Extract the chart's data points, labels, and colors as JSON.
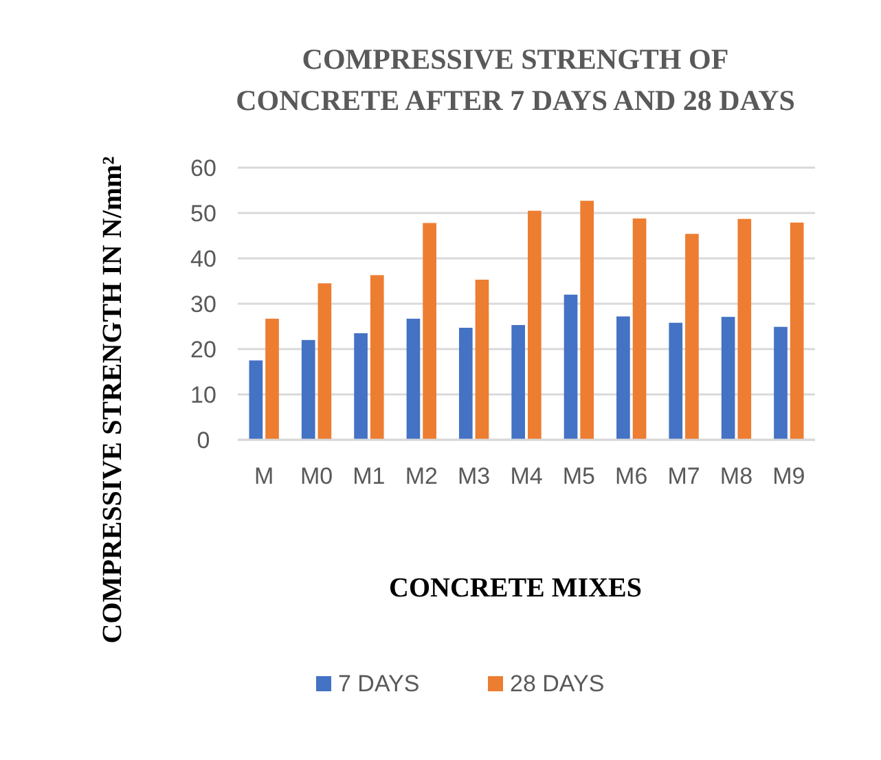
{
  "chart_data": {
    "type": "bar",
    "title": "COMPRESSIVE STRENGTH OF\nCONCRETE AFTER 7 DAYS AND 28 DAYS",
    "xlabel": "CONCRETE MIXES",
    "ylabel": "COMPRESSIVE STRENGTH IN N/mm²",
    "categories": [
      "M",
      "M0",
      "M1",
      "M2",
      "M3",
      "M4",
      "M5",
      "M6",
      "M7",
      "M8",
      "M9"
    ],
    "series": [
      {
        "name": "7 DAYS",
        "color": "#4472c4",
        "values": [
          17.5,
          22,
          23.5,
          26.7,
          24.7,
          25.3,
          32,
          27.2,
          25.8,
          27.1,
          24.9
        ]
      },
      {
        "name": "28 DAYS",
        "color": "#ed7d31",
        "values": [
          26.7,
          34.5,
          36.3,
          47.8,
          35.3,
          50.5,
          52.7,
          48.8,
          45.4,
          48.7,
          47.9
        ]
      }
    ],
    "ylim": [
      0,
      60
    ],
    "yticks": [
      0,
      10,
      20,
      30,
      40,
      50,
      60
    ],
    "grid": "y",
    "legend": "bottom"
  }
}
